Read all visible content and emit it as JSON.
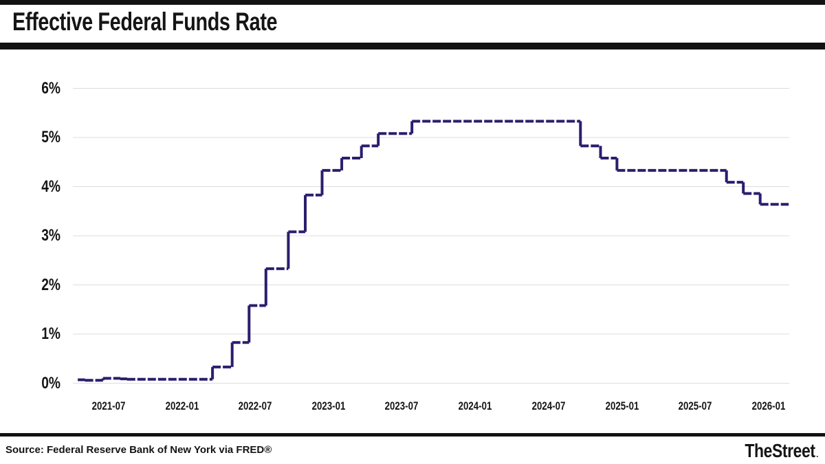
{
  "header": {
    "title": "Effective Federal Funds Rate"
  },
  "footer": {
    "source": "Source: Federal Reserve Bank of New York via FRED®",
    "logo": "TheStreet",
    "logo_dot": "."
  },
  "chart_data": {
    "type": "line",
    "subtype": "step-after",
    "title": "Effective Federal Funds Rate",
    "xlabel": "",
    "ylabel": "",
    "ylim": [
      0,
      6
    ],
    "grid": "horizontal",
    "legend": "none",
    "line_color": "#2a1e6e",
    "grid_color": "#dcdcdc",
    "y_ticks": [
      "0%",
      "1%",
      "2%",
      "3%",
      "4%",
      "5%",
      "6%"
    ],
    "x_ticks": [
      {
        "label": "2021-07",
        "date": "2021-07-01"
      },
      {
        "label": "2022-01",
        "date": "2022-01-01"
      },
      {
        "label": "2022-07",
        "date": "2022-07-01"
      },
      {
        "label": "2023-01",
        "date": "2023-01-01"
      },
      {
        "label": "2023-07",
        "date": "2023-07-01"
      },
      {
        "label": "2024-01",
        "date": "2024-01-01"
      },
      {
        "label": "2024-07",
        "date": "2024-07-01"
      },
      {
        "label": "2025-01",
        "date": "2025-01-01"
      },
      {
        "label": "2025-07",
        "date": "2025-07-01"
      },
      {
        "label": "2026-01",
        "date": "2026-01-01"
      }
    ],
    "series": [
      {
        "name": "Effective Federal Funds Rate (%)",
        "points": [
          [
            "2021-04-15",
            0.07
          ],
          [
            "2021-05-03",
            0.06
          ],
          [
            "2021-06-17",
            0.1
          ],
          [
            "2021-07-30",
            0.09
          ],
          [
            "2021-08-16",
            0.08
          ],
          [
            "2022-03-17",
            0.33
          ],
          [
            "2022-05-05",
            0.83
          ],
          [
            "2022-06-16",
            1.58
          ],
          [
            "2022-07-28",
            2.33
          ],
          [
            "2022-09-22",
            3.08
          ],
          [
            "2022-11-03",
            3.83
          ],
          [
            "2022-12-15",
            4.33
          ],
          [
            "2023-02-02",
            4.58
          ],
          [
            "2023-03-23",
            4.83
          ],
          [
            "2023-05-04",
            5.08
          ],
          [
            "2023-07-27",
            5.33
          ],
          [
            "2024-09-19",
            4.83
          ],
          [
            "2024-11-08",
            4.58
          ],
          [
            "2024-12-19",
            4.33
          ],
          [
            "2025-09-18",
            4.09
          ],
          [
            "2025-10-30",
            3.86
          ],
          [
            "2025-12-11",
            3.64
          ],
          [
            "2026-02-20",
            3.64
          ]
        ]
      }
    ]
  }
}
